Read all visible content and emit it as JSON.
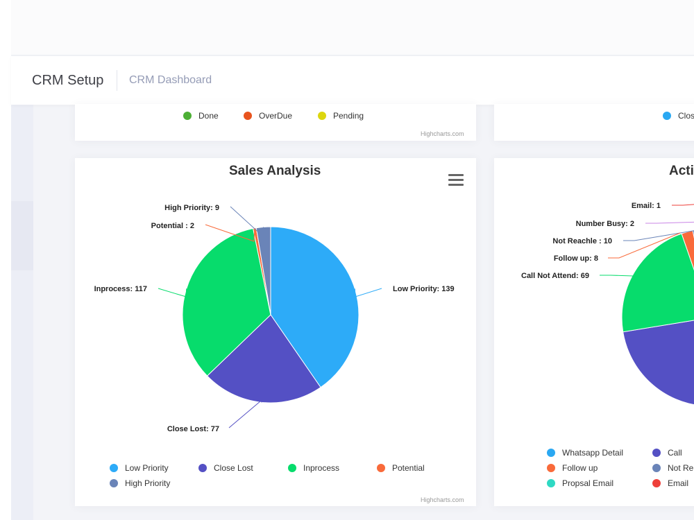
{
  "header": {
    "title": "CRM Setup",
    "breadcrumb": "CRM Dashboard"
  },
  "top_left_card": {
    "legend": [
      {
        "label": "Done",
        "color": "#4caf35"
      },
      {
        "label": "OverDue",
        "color": "#e8541e"
      },
      {
        "label": "Pending",
        "color": "#dcd60e"
      }
    ],
    "credits": "Highcharts.com"
  },
  "top_right_card": {
    "legend": [
      {
        "label": "Clos",
        "color": "#2aa8f2"
      }
    ]
  },
  "sales_card": {
    "menu_icon": "hamburger-menu-icon",
    "legend": [
      {
        "label": "Low Priority",
        "color": "#2dabf8"
      },
      {
        "label": "Close Lost",
        "color": "#5450c4"
      },
      {
        "label": "Inprocess",
        "color": "#07dc6c"
      },
      {
        "label": "Potential",
        "color": "#f96a3a"
      },
      {
        "label": "High Priority",
        "color": "#6a84b8"
      }
    ],
    "credits": "Highcharts.com"
  },
  "activity_card": {
    "title": "Acti",
    "legend": [
      {
        "label": "Whatsapp Detail",
        "color": "#2aa8f2"
      },
      {
        "label": "Call",
        "color": "#5450c4"
      },
      {
        "label": "Follow up",
        "color": "#f96a3a"
      },
      {
        "label": "Not Re",
        "color": "#6a84b8"
      },
      {
        "label": "Propsal Email",
        "color": "#2ed9c3"
      },
      {
        "label": "Email",
        "color": "#ee3f3a"
      }
    ]
  },
  "chart_data": [
    {
      "type": "pie",
      "title": "Sales Analysis",
      "categories": [
        "Low Priority",
        "Close Lost",
        "Inprocess",
        "Potential",
        "High Priority"
      ],
      "values": [
        139,
        77,
        117,
        2,
        9
      ],
      "data_labels": [
        "Low Priority: 139",
        "Close Lost: 77",
        "Inprocess: 117",
        "Potential : 2",
        "High Priority: 9"
      ],
      "colors": [
        "#2dabf8",
        "#5450c4",
        "#07dc6c",
        "#f96a3a",
        "#6a84b8"
      ]
    },
    {
      "type": "pie",
      "title": "Acti",
      "visible_data_labels": [
        "Email: 1",
        "Number Busy: 2",
        "Not Reachle : 10",
        "Follow up: 8",
        "Call Not Attend: 69"
      ],
      "visible_slices": [
        {
          "name": "Call Not Attend",
          "value": 69,
          "color": "#07dc6c"
        },
        {
          "name": "Follow up",
          "value": 8,
          "color": "#f96a3a"
        },
        {
          "name": "Not Reachle",
          "value": 10,
          "color": "#6a84b8"
        },
        {
          "name": "Call",
          "color": "#5450c4"
        }
      ]
    }
  ]
}
